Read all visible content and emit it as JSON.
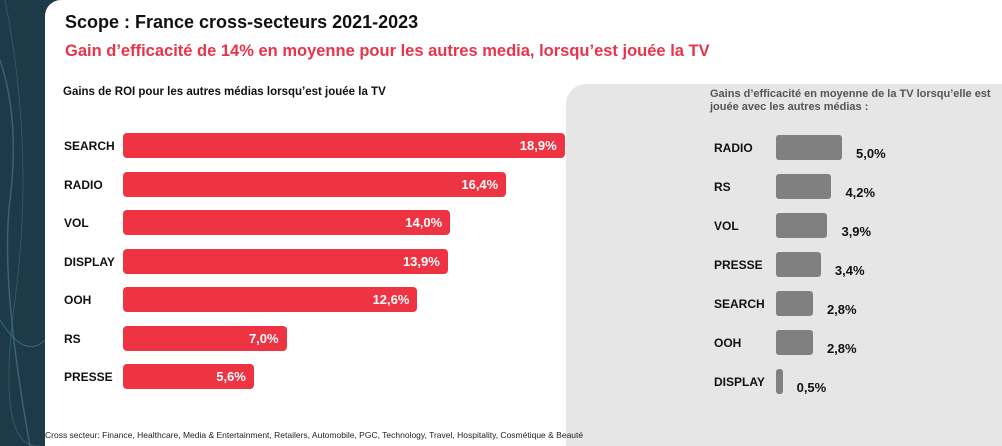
{
  "title": "Scope : France cross-secteurs 2021-2023",
  "subtitle": "Gain d’efficacité de 14% en moyenne pour les autres media, lorsqu’est jouée la TV",
  "footer": "Cross secteur: Finance, Healthcare, Media & Entertainment, Retailers, Automobile, PGC, Technology, Travel, Hospitality, Cosmétique & Beauté",
  "colors": {
    "red_bar": "#ee3342",
    "grey_bar": "#808080",
    "subtitle": "#e8344a",
    "panel": "#e6e6e6",
    "background": "#1d3a48"
  },
  "chart_data": [
    {
      "type": "bar",
      "orientation": "horizontal",
      "title": "Gains de ROI pour les autres médias lorsqu’est jouée la TV",
      "categories": [
        "SEARCH",
        "RADIO",
        "VOL",
        "DISPLAY",
        "OOH",
        "RS",
        "PRESSE"
      ],
      "values": [
        18.9,
        16.4,
        14.0,
        13.9,
        12.6,
        7.0,
        5.6
      ],
      "value_labels": [
        "18,9%",
        "16,4%",
        "14,0%",
        "13,9%",
        "12,6%",
        "7,0%",
        "5,6%"
      ],
      "xlim": [
        0,
        19
      ],
      "grid": false,
      "color": "#ee3342"
    },
    {
      "type": "bar",
      "orientation": "horizontal",
      "title": "Gains d’efficacité en moyenne de la TV lorsqu’elle est jouée avec les autres médias :",
      "categories": [
        "RADIO",
        "RS",
        "VOL",
        "PRESSE",
        "SEARCH",
        "OOH",
        "DISPLAY"
      ],
      "values": [
        5.0,
        4.2,
        3.9,
        3.4,
        2.8,
        2.8,
        0.5
      ],
      "value_labels": [
        "5,0%",
        "4,2%",
        "3,9%",
        "3,4%",
        "2,8%",
        "2,8%",
        "0,5%"
      ],
      "xlim": [
        0,
        5
      ],
      "grid": false,
      "color": "#808080"
    }
  ]
}
